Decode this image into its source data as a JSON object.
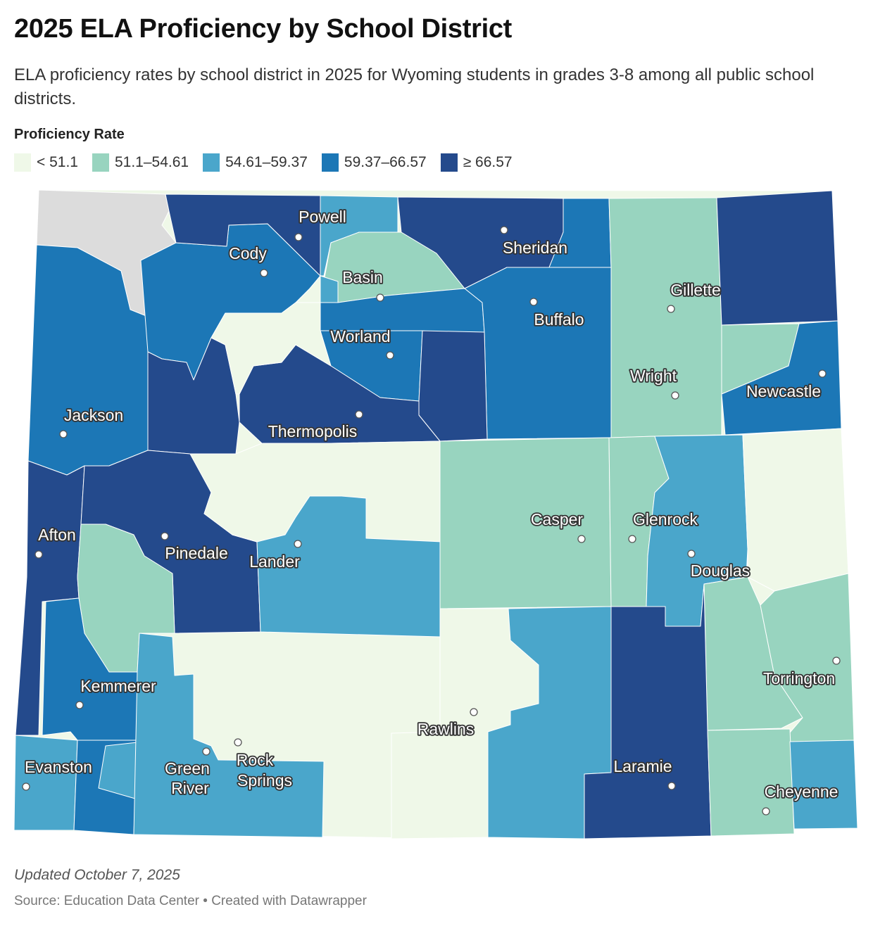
{
  "title": "2025 ELA Proficiency by School District",
  "subtitle": "ELA proficiency rates by school district in 2025 for Wyoming students in grades 3-8 among all public school districts.",
  "legend": {
    "title": "Proficiency Rate",
    "items": [
      {
        "label": "< 51.1",
        "color": "#eff8e8"
      },
      {
        "label": "51.1–54.61",
        "color": "#98d4bf"
      },
      {
        "label": "54.61–59.37",
        "color": "#4aa6cb"
      },
      {
        "label": "59.37–66.57",
        "color": "#1c77b6"
      },
      {
        "label": "≥ 66.57",
        "color": "#244a8c"
      }
    ],
    "no_data_color": "#dcdcdc"
  },
  "cities": [
    {
      "name": "Powell"
    },
    {
      "name": "Cody"
    },
    {
      "name": "Sheridan"
    },
    {
      "name": "Basin"
    },
    {
      "name": "Gillette"
    },
    {
      "name": "Buffalo"
    },
    {
      "name": "Worland"
    },
    {
      "name": "Wright"
    },
    {
      "name": "Newcastle"
    },
    {
      "name": "Jackson"
    },
    {
      "name": "Thermopolis"
    },
    {
      "name": "Afton"
    },
    {
      "name": "Casper"
    },
    {
      "name": "Glenrock"
    },
    {
      "name": "Pinedale"
    },
    {
      "name": "Lander"
    },
    {
      "name": "Douglas"
    },
    {
      "name": "Torrington"
    },
    {
      "name": "Kemmerer"
    },
    {
      "name": "Rawlins"
    },
    {
      "name": "Evanston"
    },
    {
      "name": "Green"
    },
    {
      "name": "River"
    },
    {
      "name": "Rock"
    },
    {
      "name": "Springs"
    },
    {
      "name": "Laramie"
    },
    {
      "name": "Cheyenne"
    }
  ],
  "footer": {
    "updated": "Updated October 7, 2025",
    "source": "Source: Education Data Center • Created with Datawrapper"
  }
}
